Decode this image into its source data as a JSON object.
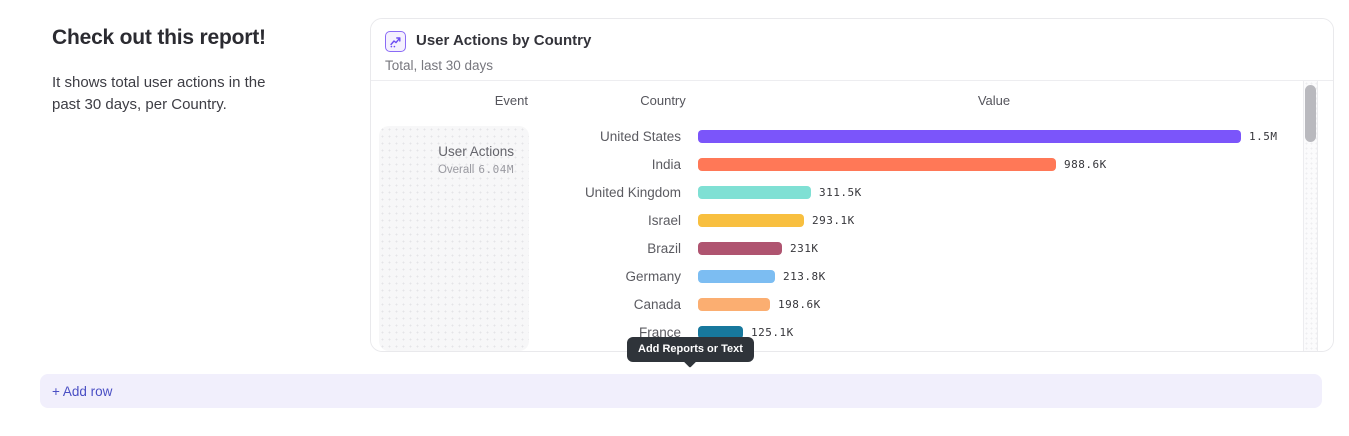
{
  "page": {
    "heading": "Check out this report!",
    "description": "It shows total user actions in the past 30 days, per Country.",
    "tooltip_label": "Add Reports or Text",
    "add_row_label": "+ Add row"
  },
  "report_card": {
    "icon": "line-chart-icon",
    "title": "User Actions by Country",
    "subtitle": "Total, last 30 days",
    "columns": {
      "event": "Event",
      "country": "Country",
      "value": "Value"
    },
    "event_cell": {
      "name": "User Actions",
      "overall_label": "Overall",
      "overall_value": "6.04M"
    }
  },
  "chart_data": {
    "type": "bar",
    "orientation": "horizontal",
    "title": "User Actions by Country",
    "subtitle": "Total, last 30 days",
    "series_name": "User Actions",
    "categories": [
      "United States",
      "India",
      "United Kingdom",
      "Israel",
      "Brazil",
      "Germany",
      "Canada",
      "France"
    ],
    "values": [
      1500000,
      988600,
      311500,
      293100,
      231000,
      213800,
      198600,
      125100
    ],
    "value_labels": [
      "1.5M",
      "988.6K",
      "311.5K",
      "293.1K",
      "231K",
      "213.8K",
      "198.6K",
      "125.1K"
    ],
    "bar_colors": [
      "#7B55FA",
      "#FF7857",
      "#7FE0D4",
      "#F8BF3F",
      "#AF5470",
      "#7CBDF2",
      "#FBAE71",
      "#17789D"
    ],
    "xlim": [
      0,
      1500000
    ],
    "overall_total": "6.04M",
    "legend_position": "none",
    "grid": false
  },
  "colors": {
    "accent_purple": "#7B55FA",
    "add_row_text": "#4A4FC4",
    "add_row_bg": "#F1EFFC",
    "tooltip_bg": "#2F343A",
    "card_border": "#E9E9EC",
    "event_cell_bg": "#F7F7F8",
    "scrollbar_thumb": "#B9B9BE"
  }
}
